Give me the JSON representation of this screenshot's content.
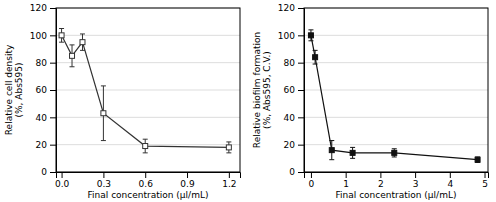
{
  "chart_data": [
    {
      "type": "line",
      "x": [
        0.0,
        0.075,
        0.15,
        0.3,
        0.6,
        1.2
      ],
      "series": [
        {
          "values": [
            100,
            85,
            95,
            43,
            19,
            18
          ],
          "errors": [
            5,
            8,
            6,
            20,
            5,
            4
          ],
          "marker": "square-open",
          "color": "#333333"
        }
      ],
      "xlabel": "Final concentration (μl/mL)",
      "ylabel": "Relative cell density\n(%, Abs595)",
      "xlim": [
        -0.04,
        1.28
      ],
      "xticks": [
        {
          "value": 0,
          "label": "0.0"
        },
        0.3,
        0.6,
        0.9,
        1.2
      ],
      "ylim": [
        0,
        120
      ],
      "yticks": [
        0,
        20,
        40,
        60,
        80,
        100,
        120
      ],
      "grid": "y"
    },
    {
      "type": "line",
      "x": [
        0.0,
        0.12,
        0.6,
        1.2,
        2.4,
        4.8
      ],
      "series": [
        {
          "values": [
            100,
            84,
            16,
            14,
            14,
            9
          ],
          "errors": [
            4,
            5,
            7,
            4,
            3,
            2
          ],
          "marker": "square",
          "color": "#111111"
        }
      ],
      "xlabel": "Final concentration (μl/mL)",
      "ylabel": "Relative biofilm formation\n(%, Abs595, C.V.)",
      "xlim": [
        -0.2,
        5.1
      ],
      "xticks": [
        0,
        1,
        2,
        3,
        4,
        5
      ],
      "ylim": [
        0,
        120
      ],
      "yticks": [
        0,
        20,
        40,
        60,
        80,
        100,
        120
      ],
      "grid": "y"
    }
  ]
}
